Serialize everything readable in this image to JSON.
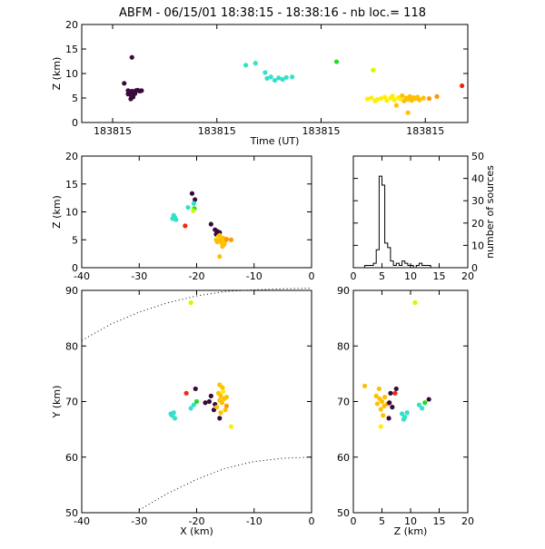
{
  "title": "ABFM - 06/15/01 18:38:15 - 18:38:16 - nb loc.=     118",
  "colors": {
    "dark": "#3a0a3a",
    "red": "#ee2a10",
    "cyan": "#33e0c8",
    "green": "#22dd22",
    "lime": "#c8ff00",
    "yellow": "#ffee00",
    "gold": "#ffc000",
    "orange": "#ff9900"
  },
  "chart_data": [
    {
      "id": "time_height",
      "type": "scatter",
      "xlabel": "Time (UT)",
      "ylabel": "Z (km)",
      "xlim": [
        0,
        1
      ],
      "ylim": [
        0,
        20
      ],
      "x_tick_values": [
        0.08,
        0.35,
        0.62,
        0.89
      ],
      "x_tick_labels": [
        "183815",
        "183815",
        "183815",
        "183815"
      ],
      "y_ticks": [
        0,
        5,
        10,
        15,
        20
      ],
      "points": [
        {
          "x": 0.13,
          "y": 13.3,
          "c": "dark"
        },
        {
          "x": 0.11,
          "y": 8.0,
          "c": "dark"
        },
        {
          "x": 0.12,
          "y": 6.5,
          "c": "dark"
        },
        {
          "x": 0.125,
          "y": 6.3,
          "c": "dark"
        },
        {
          "x": 0.13,
          "y": 6.4,
          "c": "dark"
        },
        {
          "x": 0.135,
          "y": 6.2,
          "c": "dark"
        },
        {
          "x": 0.14,
          "y": 6.5,
          "c": "dark"
        },
        {
          "x": 0.145,
          "y": 6.6,
          "c": "dark"
        },
        {
          "x": 0.12,
          "y": 5.8,
          "c": "dark"
        },
        {
          "x": 0.128,
          "y": 5.5,
          "c": "dark"
        },
        {
          "x": 0.133,
          "y": 5.2,
          "c": "dark"
        },
        {
          "x": 0.127,
          "y": 4.8,
          "c": "dark"
        },
        {
          "x": 0.138,
          "y": 5.9,
          "c": "dark"
        },
        {
          "x": 0.15,
          "y": 6.4,
          "c": "dark"
        },
        {
          "x": 0.155,
          "y": 6.5,
          "c": "dark"
        },
        {
          "x": 0.425,
          "y": 11.7,
          "c": "cyan"
        },
        {
          "x": 0.45,
          "y": 12.1,
          "c": "cyan"
        },
        {
          "x": 0.475,
          "y": 10.2,
          "c": "cyan"
        },
        {
          "x": 0.48,
          "y": 9.0,
          "c": "cyan"
        },
        {
          "x": 0.49,
          "y": 9.3,
          "c": "cyan"
        },
        {
          "x": 0.5,
          "y": 8.6,
          "c": "cyan"
        },
        {
          "x": 0.51,
          "y": 9.1,
          "c": "cyan"
        },
        {
          "x": 0.52,
          "y": 8.8,
          "c": "cyan"
        },
        {
          "x": 0.53,
          "y": 9.2,
          "c": "cyan"
        },
        {
          "x": 0.545,
          "y": 9.3,
          "c": "cyan"
        },
        {
          "x": 0.66,
          "y": 12.4,
          "c": "green"
        },
        {
          "x": 0.755,
          "y": 10.7,
          "c": "lime"
        },
        {
          "x": 0.74,
          "y": 4.8,
          "c": "yellow"
        },
        {
          "x": 0.75,
          "y": 5.0,
          "c": "yellow"
        },
        {
          "x": 0.76,
          "y": 4.4,
          "c": "yellow"
        },
        {
          "x": 0.765,
          "y": 4.7,
          "c": "yellow"
        },
        {
          "x": 0.775,
          "y": 4.9,
          "c": "yellow"
        },
        {
          "x": 0.785,
          "y": 5.2,
          "c": "yellow"
        },
        {
          "x": 0.79,
          "y": 4.5,
          "c": "yellow"
        },
        {
          "x": 0.8,
          "y": 5.0,
          "c": "yellow"
        },
        {
          "x": 0.805,
          "y": 5.4,
          "c": "yellow"
        },
        {
          "x": 0.81,
          "y": 4.6,
          "c": "yellow"
        },
        {
          "x": 0.82,
          "y": 5.1,
          "c": "yellow"
        },
        {
          "x": 0.825,
          "y": 4.8,
          "c": "yellow"
        },
        {
          "x": 0.83,
          "y": 5.5,
          "c": "gold"
        },
        {
          "x": 0.835,
          "y": 4.4,
          "c": "gold"
        },
        {
          "x": 0.84,
          "y": 5.0,
          "c": "gold"
        },
        {
          "x": 0.845,
          "y": 4.7,
          "c": "gold"
        },
        {
          "x": 0.85,
          "y": 5.3,
          "c": "gold"
        },
        {
          "x": 0.855,
          "y": 4.5,
          "c": "gold"
        },
        {
          "x": 0.86,
          "y": 5.1,
          "c": "gold"
        },
        {
          "x": 0.865,
          "y": 4.9,
          "c": "gold"
        },
        {
          "x": 0.87,
          "y": 5.2,
          "c": "gold"
        },
        {
          "x": 0.875,
          "y": 4.6,
          "c": "gold"
        },
        {
          "x": 0.885,
          "y": 5.0,
          "c": "gold"
        },
        {
          "x": 0.845,
          "y": 2.0,
          "c": "gold"
        },
        {
          "x": 0.815,
          "y": 3.5,
          "c": "gold"
        },
        {
          "x": 0.9,
          "y": 4.9,
          "c": "orange"
        },
        {
          "x": 0.92,
          "y": 5.3,
          "c": "orange"
        },
        {
          "x": 0.985,
          "y": 7.5,
          "c": "red"
        }
      ]
    },
    {
      "id": "x_height",
      "type": "scatter",
      "xlabel": "",
      "ylabel": "Z (km)",
      "xlim": [
        -40,
        0
      ],
      "ylim": [
        0,
        20
      ],
      "x_ticks": [
        -40,
        -30,
        -20,
        -10,
        0
      ],
      "y_ticks": [
        0,
        5,
        10,
        15,
        20
      ],
      "points": [
        {
          "x": -20.8,
          "y": 13.3,
          "c": "dark"
        },
        {
          "x": -20.3,
          "y": 12.2,
          "c": "dark"
        },
        {
          "x": -17.5,
          "y": 7.8,
          "c": "dark"
        },
        {
          "x": -16.8,
          "y": 6.8,
          "c": "dark"
        },
        {
          "x": -16.4,
          "y": 6.5,
          "c": "dark"
        },
        {
          "x": -16.0,
          "y": 6.3,
          "c": "dark"
        },
        {
          "x": -16.6,
          "y": 6.0,
          "c": "dark"
        },
        {
          "x": -20.5,
          "y": 11.5,
          "c": "cyan"
        },
        {
          "x": -21.5,
          "y": 10.8,
          "c": "cyan"
        },
        {
          "x": -24.0,
          "y": 9.4,
          "c": "cyan"
        },
        {
          "x": -23.8,
          "y": 9.0,
          "c": "cyan"
        },
        {
          "x": -23.6,
          "y": 8.6,
          "c": "cyan"
        },
        {
          "x": -24.2,
          "y": 8.8,
          "c": "cyan"
        },
        {
          "x": -20.4,
          "y": 10.6,
          "c": "green"
        },
        {
          "x": -20.6,
          "y": 10.2,
          "c": "lime"
        },
        {
          "x": -22.0,
          "y": 7.5,
          "c": "red"
        },
        {
          "x": -16.2,
          "y": 5.6,
          "c": "yellow"
        },
        {
          "x": -15.8,
          "y": 5.0,
          "c": "gold"
        },
        {
          "x": -15.4,
          "y": 5.3,
          "c": "gold"
        },
        {
          "x": -15.0,
          "y": 4.8,
          "c": "gold"
        },
        {
          "x": -15.6,
          "y": 4.4,
          "c": "gold"
        },
        {
          "x": -16.4,
          "y": 4.6,
          "c": "gold"
        },
        {
          "x": -15.2,
          "y": 4.2,
          "c": "gold"
        },
        {
          "x": -16.0,
          "y": 5.8,
          "c": "gold"
        },
        {
          "x": -14.8,
          "y": 5.1,
          "c": "orange"
        },
        {
          "x": -16.6,
          "y": 5.0,
          "c": "gold"
        },
        {
          "x": -15.5,
          "y": 3.8,
          "c": "gold"
        },
        {
          "x": -16.0,
          "y": 2.0,
          "c": "gold"
        },
        {
          "x": -14.0,
          "y": 5.0,
          "c": "orange"
        }
      ]
    },
    {
      "id": "height_histogram",
      "type": "histogram",
      "ylabel": "number of sources",
      "xlim": [
        0,
        20
      ],
      "ylim": [
        0,
        50
      ],
      "x_ticks": [
        0,
        5,
        10,
        15,
        20
      ],
      "y_ticks": [
        0,
        10,
        20,
        30,
        40,
        50
      ],
      "bins": [
        {
          "x": 0.0,
          "v": 0
        },
        {
          "x": 2.0,
          "v": 1
        },
        {
          "x": 2.5,
          "v": 1
        },
        {
          "x": 3.0,
          "v": 1
        },
        {
          "x": 3.5,
          "v": 2
        },
        {
          "x": 4.0,
          "v": 8
        },
        {
          "x": 4.5,
          "v": 41
        },
        {
          "x": 5.0,
          "v": 37
        },
        {
          "x": 5.5,
          "v": 11
        },
        {
          "x": 6.0,
          "v": 9
        },
        {
          "x": 6.5,
          "v": 3
        },
        {
          "x": 7.0,
          "v": 1
        },
        {
          "x": 7.5,
          "v": 2
        },
        {
          "x": 8.0,
          "v": 1
        },
        {
          "x": 8.5,
          "v": 3
        },
        {
          "x": 9.0,
          "v": 2
        },
        {
          "x": 9.5,
          "v": 1
        },
        {
          "x": 10.0,
          "v": 1
        },
        {
          "x": 10.5,
          "v": 0
        },
        {
          "x": 11.0,
          "v": 1
        },
        {
          "x": 11.5,
          "v": 2
        },
        {
          "x": 12.0,
          "v": 1
        },
        {
          "x": 12.5,
          "v": 1
        },
        {
          "x": 13.0,
          "v": 1
        },
        {
          "x": 13.5,
          "v": 0
        },
        {
          "x": 20.0,
          "v": 0
        }
      ]
    },
    {
      "id": "plan_view",
      "type": "scatter",
      "xlabel": "X (km)",
      "ylabel": "Y (km)",
      "xlim": [
        -40,
        0
      ],
      "ylim": [
        50,
        90
      ],
      "x_ticks": [
        -40,
        -30,
        -20,
        -10,
        0
      ],
      "y_ticks": [
        50,
        60,
        70,
        80,
        90
      ],
      "range_rings": [
        [
          [
            -40,
            81
          ],
          [
            -35,
            83.9
          ],
          [
            -30,
            86.1
          ],
          [
            -25,
            87.8
          ],
          [
            -20,
            89.0
          ],
          [
            -15,
            89.8
          ],
          [
            -10,
            90.1
          ],
          [
            -5,
            90.3
          ],
          [
            0,
            90.4
          ]
        ],
        [
          [
            -30,
            50.5
          ],
          [
            -25,
            53.5
          ],
          [
            -20,
            56.0
          ],
          [
            -15,
            58.0
          ],
          [
            -10,
            59.2
          ],
          [
            -5,
            59.8
          ],
          [
            0,
            60.0
          ]
        ]
      ],
      "points": [
        {
          "x": -21.0,
          "y": 87.8,
          "c": "lime"
        },
        {
          "x": -20.2,
          "y": 72.3,
          "c": "dark"
        },
        {
          "x": -17.5,
          "y": 71.0,
          "c": "dark"
        },
        {
          "x": -17.8,
          "y": 70.0,
          "c": "dark"
        },
        {
          "x": -16.8,
          "y": 69.5,
          "c": "dark"
        },
        {
          "x": -17.0,
          "y": 68.5,
          "c": "dark"
        },
        {
          "x": -16.0,
          "y": 67.0,
          "c": "dark"
        },
        {
          "x": -18.5,
          "y": 69.8,
          "c": "dark"
        },
        {
          "x": -21.8,
          "y": 71.5,
          "c": "red"
        },
        {
          "x": -20.0,
          "y": 70.0,
          "c": "green"
        },
        {
          "x": -20.5,
          "y": 69.4,
          "c": "cyan"
        },
        {
          "x": -21.0,
          "y": 68.8,
          "c": "cyan"
        },
        {
          "x": -24.0,
          "y": 68.0,
          "c": "cyan"
        },
        {
          "x": -24.3,
          "y": 67.5,
          "c": "cyan"
        },
        {
          "x": -23.8,
          "y": 67.0,
          "c": "cyan"
        },
        {
          "x": -24.5,
          "y": 67.8,
          "c": "cyan"
        },
        {
          "x": -16.0,
          "y": 73.0,
          "c": "gold"
        },
        {
          "x": -15.5,
          "y": 72.5,
          "c": "gold"
        },
        {
          "x": -16.2,
          "y": 71.5,
          "c": "gold"
        },
        {
          "x": -15.8,
          "y": 71.0,
          "c": "gold"
        },
        {
          "x": -15.2,
          "y": 70.5,
          "c": "gold"
        },
        {
          "x": -16.0,
          "y": 70.2,
          "c": "gold"
        },
        {
          "x": -15.6,
          "y": 69.8,
          "c": "gold"
        },
        {
          "x": -14.8,
          "y": 70.8,
          "c": "gold"
        },
        {
          "x": -16.5,
          "y": 69.0,
          "c": "gold"
        },
        {
          "x": -15.0,
          "y": 68.5,
          "c": "gold"
        },
        {
          "x": -15.8,
          "y": 68.0,
          "c": "gold"
        },
        {
          "x": -14.8,
          "y": 69.2,
          "c": "orange"
        },
        {
          "x": -15.4,
          "y": 71.8,
          "c": "yellow"
        },
        {
          "x": -14.0,
          "y": 65.5,
          "c": "yellow"
        }
      ]
    },
    {
      "id": "z_y_view",
      "type": "scatter",
      "xlabel": "Z (km)",
      "ylabel": "",
      "xlim": [
        0,
        20
      ],
      "ylim": [
        50,
        90
      ],
      "x_ticks": [
        0,
        5,
        10,
        15,
        20
      ],
      "y_ticks": [
        50,
        60,
        70,
        80,
        90
      ],
      "points": [
        {
          "x": 10.8,
          "y": 87.8,
          "c": "lime"
        },
        {
          "x": 2.0,
          "y": 72.8,
          "c": "gold"
        },
        {
          "x": 4.5,
          "y": 72.3,
          "c": "gold"
        },
        {
          "x": 4.0,
          "y": 71.0,
          "c": "gold"
        },
        {
          "x": 4.6,
          "y": 70.5,
          "c": "gold"
        },
        {
          "x": 5.0,
          "y": 70.0,
          "c": "gold"
        },
        {
          "x": 4.2,
          "y": 69.6,
          "c": "gold"
        },
        {
          "x": 5.4,
          "y": 69.2,
          "c": "gold"
        },
        {
          "x": 4.8,
          "y": 68.6,
          "c": "gold"
        },
        {
          "x": 5.5,
          "y": 70.8,
          "c": "gold"
        },
        {
          "x": 6.0,
          "y": 69.6,
          "c": "orange"
        },
        {
          "x": 5.2,
          "y": 67.5,
          "c": "gold"
        },
        {
          "x": 4.8,
          "y": 65.5,
          "c": "yellow"
        },
        {
          "x": 6.5,
          "y": 71.5,
          "c": "dark"
        },
        {
          "x": 6.3,
          "y": 69.8,
          "c": "dark"
        },
        {
          "x": 6.8,
          "y": 69.0,
          "c": "dark"
        },
        {
          "x": 6.2,
          "y": 67.0,
          "c": "dark"
        },
        {
          "x": 7.5,
          "y": 72.3,
          "c": "dark"
        },
        {
          "x": 7.3,
          "y": 71.5,
          "c": "red"
        },
        {
          "x": 8.5,
          "y": 67.8,
          "c": "cyan"
        },
        {
          "x": 9.0,
          "y": 67.2,
          "c": "cyan"
        },
        {
          "x": 9.4,
          "y": 68.0,
          "c": "cyan"
        },
        {
          "x": 8.8,
          "y": 66.8,
          "c": "cyan"
        },
        {
          "x": 11.5,
          "y": 69.4,
          "c": "cyan"
        },
        {
          "x": 12.0,
          "y": 68.8,
          "c": "cyan"
        },
        {
          "x": 12.5,
          "y": 69.8,
          "c": "green"
        },
        {
          "x": 13.2,
          "y": 70.4,
          "c": "dark"
        }
      ]
    }
  ]
}
